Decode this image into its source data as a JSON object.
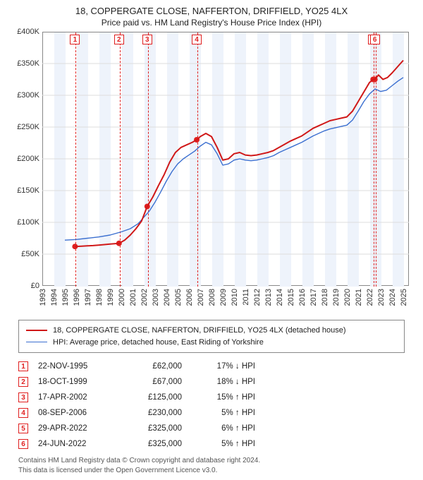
{
  "title": "18, COPPERGATE CLOSE, NAFFERTON, DRIFFIELD, YO25 4LX",
  "subtitle": "Price paid vs. HM Land Registry's House Price Index (HPI)",
  "chart": {
    "type": "line",
    "plot_bg": "#ffffff",
    "alt_band_color": "#eef3fb",
    "grid_color": "#dddddd",
    "x_years": [
      1993,
      1994,
      1995,
      1996,
      1997,
      1998,
      1999,
      2000,
      2001,
      2002,
      2003,
      2004,
      2005,
      2006,
      2007,
      2008,
      2009,
      2010,
      2011,
      2012,
      2013,
      2014,
      2015,
      2016,
      2017,
      2018,
      2019,
      2020,
      2021,
      2022,
      2023,
      2024,
      2025
    ],
    "xlim": [
      1993,
      2025.5
    ],
    "ylim": [
      0,
      400000
    ],
    "ytick_step": 50000,
    "ytick_labels": [
      "£0",
      "£50K",
      "£100K",
      "£150K",
      "£200K",
      "£250K",
      "£300K",
      "£350K",
      "£400K"
    ],
    "series": [
      {
        "name": "red",
        "label": "18, COPPERGATE CLOSE, NAFFERTON, DRIFFIELD, YO25 4LX (detached house)",
        "color": "#d01818",
        "line_width": 2.0,
        "points": [
          [
            1995.9,
            62000
          ],
          [
            1996.5,
            62500
          ],
          [
            1997.0,
            63000
          ],
          [
            1997.5,
            63500
          ],
          [
            1998.0,
            64200
          ],
          [
            1998.5,
            65000
          ],
          [
            1999.0,
            65800
          ],
          [
            1999.5,
            66500
          ],
          [
            1999.8,
            67000
          ],
          [
            2000.3,
            72000
          ],
          [
            2000.8,
            80000
          ],
          [
            2001.3,
            90000
          ],
          [
            2001.8,
            102000
          ],
          [
            2002.3,
            125000
          ],
          [
            2002.8,
            140000
          ],
          [
            2003.3,
            158000
          ],
          [
            2003.8,
            175000
          ],
          [
            2004.3,
            195000
          ],
          [
            2004.8,
            210000
          ],
          [
            2005.3,
            218000
          ],
          [
            2005.8,
            222000
          ],
          [
            2006.3,
            226000
          ],
          [
            2006.7,
            230000
          ],
          [
            2007.0,
            235000
          ],
          [
            2007.5,
            240000
          ],
          [
            2008.0,
            235000
          ],
          [
            2008.5,
            218000
          ],
          [
            2009.0,
            198000
          ],
          [
            2009.5,
            200000
          ],
          [
            2010.0,
            208000
          ],
          [
            2010.5,
            210000
          ],
          [
            2011.0,
            206000
          ],
          [
            2011.5,
            205000
          ],
          [
            2012.0,
            206000
          ],
          [
            2012.5,
            208000
          ],
          [
            2013.0,
            210000
          ],
          [
            2013.5,
            213000
          ],
          [
            2014.0,
            218000
          ],
          [
            2014.5,
            223000
          ],
          [
            2015.0,
            228000
          ],
          [
            2015.5,
            232000
          ],
          [
            2016.0,
            236000
          ],
          [
            2016.5,
            242000
          ],
          [
            2017.0,
            248000
          ],
          [
            2017.5,
            252000
          ],
          [
            2018.0,
            256000
          ],
          [
            2018.5,
            260000
          ],
          [
            2019.0,
            262000
          ],
          [
            2019.5,
            264000
          ],
          [
            2020.0,
            266000
          ],
          [
            2020.5,
            275000
          ],
          [
            2021.0,
            290000
          ],
          [
            2021.5,
            305000
          ],
          [
            2022.0,
            320000
          ],
          [
            2022.33,
            325000
          ],
          [
            2022.48,
            325000
          ],
          [
            2022.8,
            332000
          ],
          [
            2023.2,
            325000
          ],
          [
            2023.6,
            328000
          ],
          [
            2024.0,
            335000
          ],
          [
            2024.5,
            345000
          ],
          [
            2025.0,
            355000
          ]
        ]
      },
      {
        "name": "blue",
        "label": "HPI: Average price, detached house, East Riding of Yorkshire",
        "color": "#3b6fd0",
        "line_width": 1.4,
        "points": [
          [
            1995.0,
            72000
          ],
          [
            1996.0,
            73000
          ],
          [
            1997.0,
            75000
          ],
          [
            1998.0,
            77000
          ],
          [
            1999.0,
            80000
          ],
          [
            2000.0,
            85000
          ],
          [
            2000.8,
            90000
          ],
          [
            2001.5,
            98000
          ],
          [
            2002.0,
            108000
          ],
          [
            2002.5,
            118000
          ],
          [
            2003.0,
            132000
          ],
          [
            2003.5,
            148000
          ],
          [
            2004.0,
            165000
          ],
          [
            2004.5,
            180000
          ],
          [
            2005.0,
            192000
          ],
          [
            2005.5,
            200000
          ],
          [
            2006.0,
            206000
          ],
          [
            2006.5,
            212000
          ],
          [
            2007.0,
            220000
          ],
          [
            2007.5,
            226000
          ],
          [
            2008.0,
            222000
          ],
          [
            2008.5,
            208000
          ],
          [
            2009.0,
            190000
          ],
          [
            2009.5,
            192000
          ],
          [
            2010.0,
            198000
          ],
          [
            2010.5,
            200000
          ],
          [
            2011.0,
            198000
          ],
          [
            2011.5,
            197000
          ],
          [
            2012.0,
            198000
          ],
          [
            2012.5,
            200000
          ],
          [
            2013.0,
            202000
          ],
          [
            2013.5,
            205000
          ],
          [
            2014.0,
            210000
          ],
          [
            2014.5,
            214000
          ],
          [
            2015.0,
            218000
          ],
          [
            2015.5,
            222000
          ],
          [
            2016.0,
            226000
          ],
          [
            2016.5,
            231000
          ],
          [
            2017.0,
            236000
          ],
          [
            2017.5,
            240000
          ],
          [
            2018.0,
            244000
          ],
          [
            2018.5,
            247000
          ],
          [
            2019.0,
            249000
          ],
          [
            2019.5,
            251000
          ],
          [
            2020.0,
            253000
          ],
          [
            2020.5,
            261000
          ],
          [
            2021.0,
            275000
          ],
          [
            2021.5,
            290000
          ],
          [
            2022.0,
            302000
          ],
          [
            2022.5,
            310000
          ],
          [
            2023.0,
            306000
          ],
          [
            2023.5,
            308000
          ],
          [
            2024.0,
            315000
          ],
          [
            2024.5,
            322000
          ],
          [
            2025.0,
            328000
          ]
        ]
      }
    ],
    "sale_markers": [
      {
        "n": "1",
        "x": 1995.9,
        "y": 62000
      },
      {
        "n": "2",
        "x": 1999.8,
        "y": 67000
      },
      {
        "n": "3",
        "x": 2002.3,
        "y": 125000
      },
      {
        "n": "4",
        "x": 2006.69,
        "y": 230000
      },
      {
        "n": "5",
        "x": 2022.33,
        "y": 325000
      },
      {
        "n": "6",
        "x": 2022.48,
        "y": 325000
      }
    ]
  },
  "legend": {
    "items": [
      {
        "color": "#d01818",
        "width": 2.0,
        "label": "18, COPPERGATE CLOSE, NAFFERTON, DRIFFIELD, YO25 4LX (detached house)"
      },
      {
        "color": "#3b6fd0",
        "width": 1.4,
        "label": "HPI: Average price, detached house, East Riding of Yorkshire"
      }
    ]
  },
  "events": [
    {
      "n": "1",
      "date": "22-NOV-1995",
      "price": "£62,000",
      "diff": "17% ↓ HPI"
    },
    {
      "n": "2",
      "date": "18-OCT-1999",
      "price": "£67,000",
      "diff": "18% ↓ HPI"
    },
    {
      "n": "3",
      "date": "17-APR-2002",
      "price": "£125,000",
      "diff": "15% ↑ HPI"
    },
    {
      "n": "4",
      "date": "08-SEP-2006",
      "price": "£230,000",
      "diff": "5% ↑ HPI"
    },
    {
      "n": "5",
      "date": "29-APR-2022",
      "price": "£325,000",
      "diff": "6% ↑ HPI"
    },
    {
      "n": "6",
      "date": "24-JUN-2022",
      "price": "£325,000",
      "diff": "5% ↑ HPI"
    }
  ],
  "footer": {
    "line1": "Contains HM Land Registry data © Crown copyright and database right 2024.",
    "line2": "This data is licensed under the Open Government Licence v3.0."
  }
}
